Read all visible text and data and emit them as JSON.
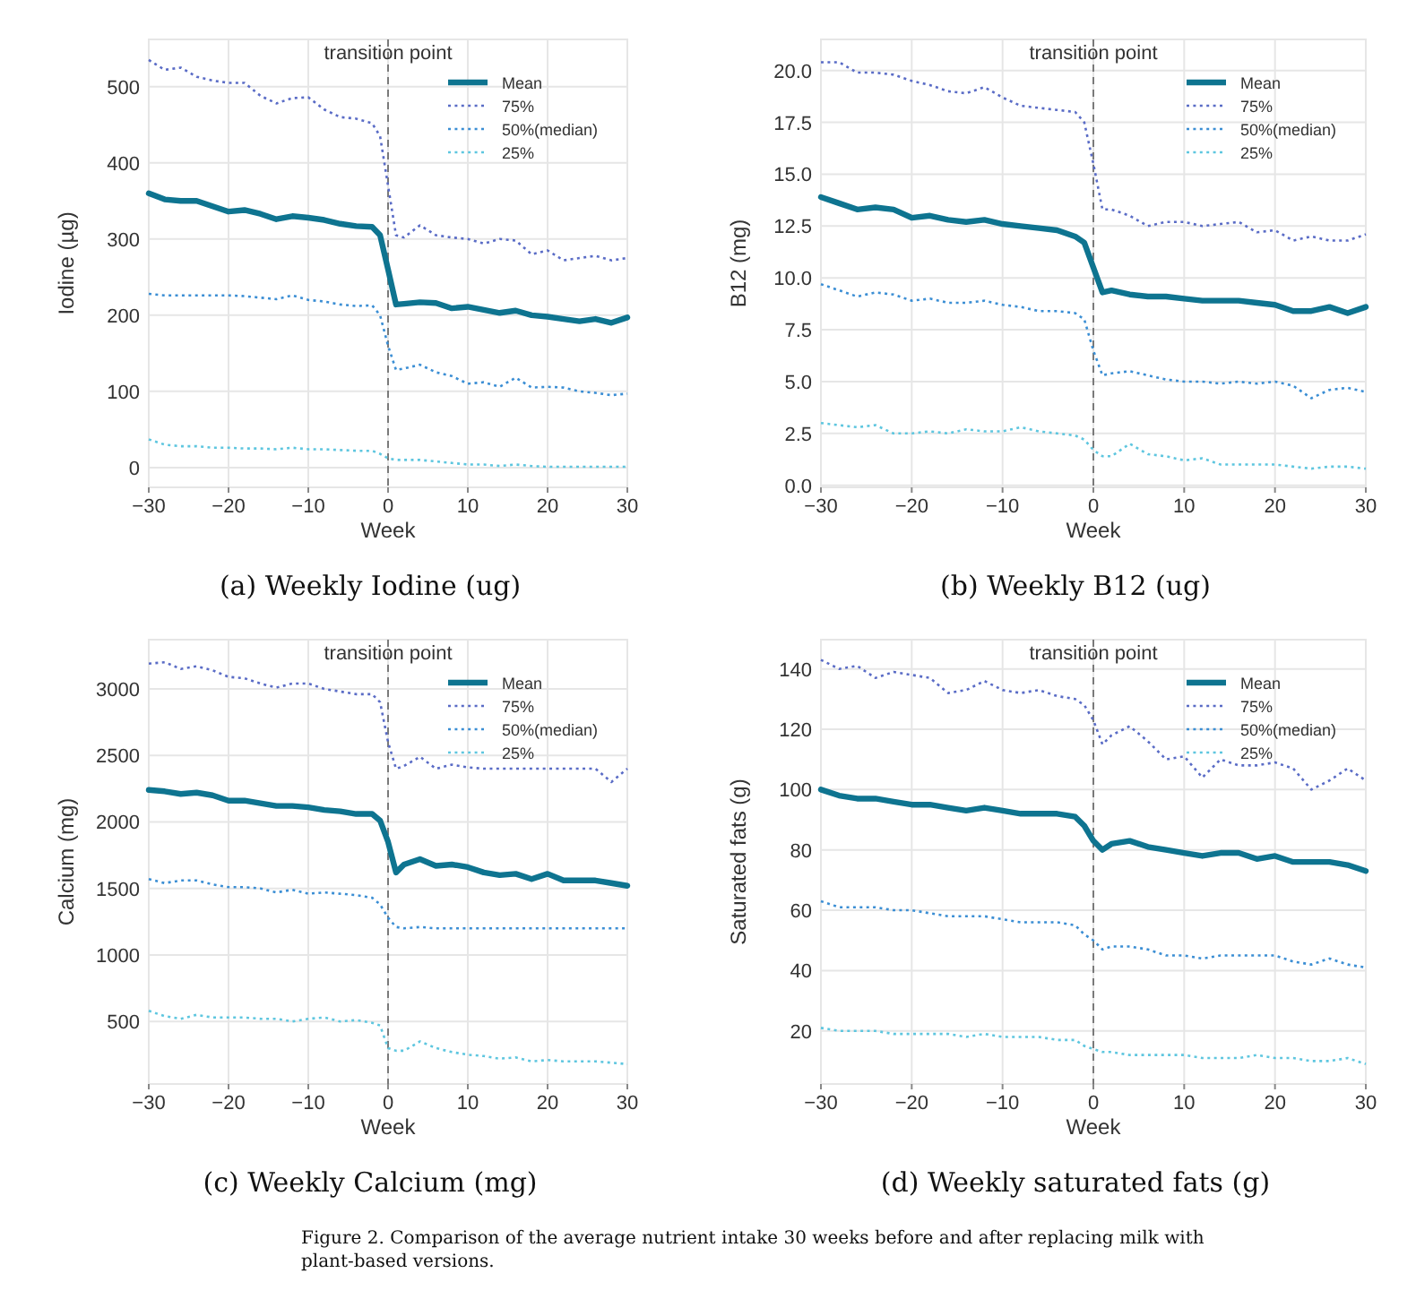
{
  "chart_data": [
    {
      "type": "line",
      "title": "(a) Weekly Iodine (ug)",
      "xlabel": "Week",
      "ylabel": "Iodine (µg)",
      "grid": true,
      "legend": "top right",
      "x": [
        -30,
        -28,
        -26,
        -24,
        -22,
        -20,
        -18,
        -16,
        -14,
        -12,
        -10,
        -8,
        -6,
        -4,
        -2,
        -1,
        0,
        1,
        2,
        4,
        6,
        8,
        10,
        12,
        14,
        16,
        18,
        20,
        22,
        24,
        26,
        28,
        30
      ],
      "xlim": [
        -30,
        30
      ],
      "xticks": [
        {
          "value": -30,
          "label": "−30"
        },
        {
          "value": -20,
          "label": "−20"
        },
        {
          "value": -10,
          "label": "−10"
        },
        0,
        10,
        20,
        30
      ],
      "ylim": [
        -26,
        562
      ],
      "yticks": [
        0,
        100,
        200,
        300,
        400,
        500
      ],
      "ref_lines": [
        {
          "axis": "x",
          "value": 0,
          "label": "transition point",
          "color": "#7a7a7a",
          "line_style": "dashed"
        }
      ],
      "series": [
        {
          "name": "Mean",
          "color": "#0e7490",
          "line_style": "solid",
          "values": [
            360,
            352,
            350,
            350,
            343,
            336,
            338,
            333,
            326,
            330,
            328,
            325,
            320,
            317,
            316,
            305,
            260,
            214,
            215,
            217,
            216,
            209,
            211,
            207,
            203,
            206,
            200,
            198,
            195,
            192,
            195,
            190,
            197
          ]
        },
        {
          "name": "75%",
          "color": "#5a6cc6",
          "line_style": "dotted",
          "values": [
            535,
            522,
            525,
            513,
            508,
            505,
            505,
            488,
            478,
            485,
            486,
            470,
            460,
            458,
            452,
            435,
            370,
            305,
            302,
            318,
            305,
            302,
            300,
            294,
            300,
            298,
            280,
            285,
            272,
            275,
            278,
            272,
            275
          ]
        },
        {
          "name": "50%(median)",
          "color": "#3b8ed4",
          "line_style": "dotted",
          "values": [
            228,
            226,
            226,
            226,
            226,
            226,
            225,
            223,
            221,
            226,
            220,
            218,
            214,
            212,
            213,
            200,
            160,
            128,
            130,
            135,
            125,
            120,
            110,
            112,
            106,
            118,
            105,
            106,
            105,
            100,
            98,
            95,
            97
          ]
        },
        {
          "name": "25%",
          "color": "#5ec6df",
          "line_style": "dotted",
          "values": [
            37,
            30,
            28,
            28,
            26,
            26,
            25,
            25,
            24,
            26,
            24,
            24,
            23,
            22,
            22,
            18,
            12,
            10,
            10,
            10,
            8,
            6,
            4,
            4,
            2,
            4,
            2,
            1,
            1,
            1,
            1,
            1,
            1
          ]
        }
      ]
    },
    {
      "type": "line",
      "title": "(b) Weekly B12 (ug)",
      "xlabel": "Week",
      "ylabel": "B12 (mg)",
      "grid": true,
      "legend": "top right",
      "x": [
        -30,
        -28,
        -26,
        -24,
        -22,
        -20,
        -18,
        -16,
        -14,
        -12,
        -10,
        -8,
        -6,
        -4,
        -2,
        -1,
        0,
        1,
        2,
        4,
        6,
        8,
        10,
        12,
        14,
        16,
        18,
        20,
        22,
        24,
        26,
        28,
        30
      ],
      "xlim": [
        -30,
        30
      ],
      "xticks": [
        {
          "value": -30,
          "label": "−30"
        },
        {
          "value": -20,
          "label": "−20"
        },
        {
          "value": -10,
          "label": "−10"
        },
        0,
        10,
        20,
        30
      ],
      "ylim": [
        -0.1,
        21.5
      ],
      "yticks": [
        {
          "value": 0,
          "label": "0.0"
        },
        2.5,
        {
          "value": 5,
          "label": "5.0"
        },
        7.5,
        {
          "value": 10,
          "label": "10.0"
        },
        12.5,
        {
          "value": 15,
          "label": "15.0"
        },
        17.5,
        {
          "value": 20,
          "label": "20.0"
        }
      ],
      "ref_lines": [
        {
          "axis": "x",
          "value": 0,
          "label": "transition point",
          "color": "#7a7a7a",
          "line_style": "dashed"
        }
      ],
      "series": [
        {
          "name": "Mean",
          "color": "#0e7490",
          "line_style": "solid",
          "values": [
            13.9,
            13.6,
            13.3,
            13.4,
            13.3,
            12.9,
            13.0,
            12.8,
            12.7,
            12.8,
            12.6,
            12.5,
            12.4,
            12.3,
            12.0,
            11.7,
            10.5,
            9.3,
            9.4,
            9.2,
            9.1,
            9.1,
            9.0,
            8.9,
            8.9,
            8.9,
            8.8,
            8.7,
            8.4,
            8.4,
            8.6,
            8.3,
            8.6
          ]
        },
        {
          "name": "75%",
          "color": "#5a6cc6",
          "line_style": "dotted",
          "values": [
            20.4,
            20.4,
            19.9,
            19.9,
            19.8,
            19.5,
            19.3,
            19.0,
            18.9,
            19.2,
            18.7,
            18.3,
            18.2,
            18.1,
            18.0,
            17.5,
            15.5,
            13.3,
            13.3,
            13.0,
            12.5,
            12.7,
            12.7,
            12.5,
            12.6,
            12.7,
            12.2,
            12.3,
            11.8,
            12.0,
            11.8,
            11.8,
            12.1
          ]
        },
        {
          "name": "50%(median)",
          "color": "#3b8ed4",
          "line_style": "dotted",
          "values": [
            9.7,
            9.4,
            9.1,
            9.3,
            9.2,
            8.9,
            9.0,
            8.8,
            8.8,
            8.9,
            8.7,
            8.6,
            8.4,
            8.4,
            8.3,
            8.0,
            6.5,
            5.3,
            5.4,
            5.5,
            5.3,
            5.1,
            5.0,
            5.0,
            4.9,
            5.0,
            4.9,
            5.0,
            4.8,
            4.2,
            4.6,
            4.7,
            4.5
          ]
        },
        {
          "name": "25%",
          "color": "#5ec6df",
          "line_style": "dotted",
          "values": [
            3.0,
            2.9,
            2.8,
            2.9,
            2.5,
            2.5,
            2.6,
            2.5,
            2.7,
            2.6,
            2.6,
            2.8,
            2.6,
            2.5,
            2.4,
            2.2,
            1.7,
            1.4,
            1.4,
            2.0,
            1.5,
            1.4,
            1.2,
            1.3,
            1.0,
            1.0,
            1.0,
            1.0,
            0.9,
            0.8,
            0.9,
            0.9,
            0.8
          ]
        }
      ]
    },
    {
      "type": "line",
      "title": "(c) Weekly Calcium (mg)",
      "xlabel": "Week",
      "ylabel": "Calcium (mg)",
      "grid": true,
      "legend": "top right",
      "x": [
        -30,
        -28,
        -26,
        -24,
        -22,
        -20,
        -18,
        -16,
        -14,
        -12,
        -10,
        -8,
        -6,
        -4,
        -2,
        -1,
        0,
        1,
        2,
        4,
        6,
        8,
        10,
        12,
        14,
        16,
        18,
        20,
        22,
        24,
        26,
        28,
        30
      ],
      "xlim": [
        -30,
        30
      ],
      "xticks": [
        {
          "value": -30,
          "label": "−30"
        },
        {
          "value": -20,
          "label": "−20"
        },
        {
          "value": -10,
          "label": "−10"
        },
        0,
        10,
        20,
        30
      ],
      "ylim": [
        30,
        3370
      ],
      "yticks": [
        500,
        1000,
        1500,
        2000,
        2500,
        3000
      ],
      "ref_lines": [
        {
          "axis": "x",
          "value": 0,
          "label": "transition point",
          "color": "#7a7a7a",
          "line_style": "dashed"
        }
      ],
      "series": [
        {
          "name": "Mean",
          "color": "#0e7490",
          "line_style": "solid",
          "values": [
            2240,
            2230,
            2210,
            2220,
            2200,
            2160,
            2160,
            2140,
            2120,
            2120,
            2110,
            2090,
            2080,
            2060,
            2060,
            2010,
            1850,
            1620,
            1680,
            1720,
            1670,
            1680,
            1660,
            1620,
            1600,
            1610,
            1570,
            1610,
            1560,
            1560,
            1560,
            1540,
            1520
          ]
        },
        {
          "name": "75%",
          "color": "#5a6cc6",
          "line_style": "dotted",
          "values": [
            3190,
            3200,
            3150,
            3170,
            3140,
            3090,
            3080,
            3040,
            3010,
            3040,
            3040,
            3000,
            2980,
            2960,
            2960,
            2900,
            2600,
            2400,
            2420,
            2490,
            2400,
            2430,
            2410,
            2400,
            2400,
            2400,
            2400,
            2400,
            2400,
            2400,
            2400,
            2300,
            2400
          ]
        },
        {
          "name": "50%(median)",
          "color": "#3b8ed4",
          "line_style": "dotted",
          "values": [
            1570,
            1540,
            1560,
            1560,
            1530,
            1510,
            1510,
            1500,
            1470,
            1490,
            1460,
            1470,
            1460,
            1450,
            1430,
            1380,
            1280,
            1210,
            1200,
            1210,
            1200,
            1200,
            1200,
            1200,
            1200,
            1200,
            1200,
            1200,
            1200,
            1200,
            1200,
            1200,
            1200
          ]
        },
        {
          "name": "25%",
          "color": "#5ec6df",
          "line_style": "dotted",
          "values": [
            580,
            540,
            520,
            550,
            530,
            530,
            530,
            520,
            520,
            500,
            520,
            530,
            500,
            510,
            490,
            470,
            300,
            280,
            280,
            350,
            300,
            270,
            250,
            240,
            220,
            230,
            200,
            210,
            200,
            200,
            200,
            190,
            180
          ]
        }
      ]
    },
    {
      "type": "line",
      "title": "(d) Weekly saturated fats (g)",
      "xlabel": "Week",
      "ylabel": "Saturated fats (g)",
      "grid": true,
      "legend": "top right",
      "annotations": [
        "Figure 2.  Comparison of the average nutrient intake 30 weeks before and after replacing milk with plant-based versions."
      ],
      "x": [
        -30,
        -28,
        -26,
        -24,
        -22,
        -20,
        -18,
        -16,
        -14,
        -12,
        -10,
        -8,
        -6,
        -4,
        -2,
        -1,
        0,
        1,
        2,
        4,
        6,
        8,
        10,
        12,
        14,
        16,
        18,
        20,
        22,
        24,
        26,
        28,
        30
      ],
      "xlim": [
        -30,
        30
      ],
      "xticks": [
        {
          "value": -30,
          "label": "−30"
        },
        {
          "value": -20,
          "label": "−20"
        },
        {
          "value": -10,
          "label": "−10"
        },
        0,
        10,
        20,
        30
      ],
      "ylim": [
        2.4,
        149.7
      ],
      "yticks": [
        20,
        40,
        60,
        80,
        100,
        120,
        140
      ],
      "ref_lines": [
        {
          "axis": "x",
          "value": 0,
          "label": "transition point",
          "color": "#7a7a7a",
          "line_style": "dashed"
        }
      ],
      "series": [
        {
          "name": "Mean",
          "color": "#0e7490",
          "line_style": "solid",
          "values": [
            100,
            98,
            97,
            97,
            96,
            95,
            95,
            94,
            93,
            94,
            93,
            92,
            92,
            92,
            91,
            88,
            83,
            80,
            82,
            83,
            81,
            80,
            79,
            78,
            79,
            79,
            77,
            78,
            76,
            76,
            76,
            75,
            73
          ]
        },
        {
          "name": "75%",
          "color": "#5a6cc6",
          "line_style": "dotted",
          "values": [
            143,
            140,
            141,
            137,
            139,
            138,
            137,
            132,
            133,
            136,
            133,
            132,
            133,
            131,
            130,
            128,
            123,
            115,
            118,
            121,
            116,
            110,
            111,
            104,
            110,
            108,
            108,
            109,
            107,
            100,
            103,
            107,
            103
          ]
        },
        {
          "name": "50%(median)",
          "color": "#3b8ed4",
          "line_style": "dotted",
          "values": [
            63,
            61,
            61,
            61,
            60,
            60,
            59,
            58,
            58,
            58,
            57,
            56,
            56,
            56,
            55,
            52,
            50,
            47,
            48,
            48,
            47,
            45,
            45,
            44,
            45,
            45,
            45,
            45,
            43,
            42,
            44,
            42,
            41
          ]
        },
        {
          "name": "25%",
          "color": "#5ec6df",
          "line_style": "dotted",
          "values": [
            21,
            20,
            20,
            20,
            19,
            19,
            19,
            19,
            18,
            19,
            18,
            18,
            18,
            17,
            17,
            15,
            14,
            13,
            13,
            12,
            12,
            12,
            12,
            11,
            11,
            11,
            12,
            11,
            11,
            10,
            10,
            11,
            9
          ]
        }
      ]
    }
  ]
}
